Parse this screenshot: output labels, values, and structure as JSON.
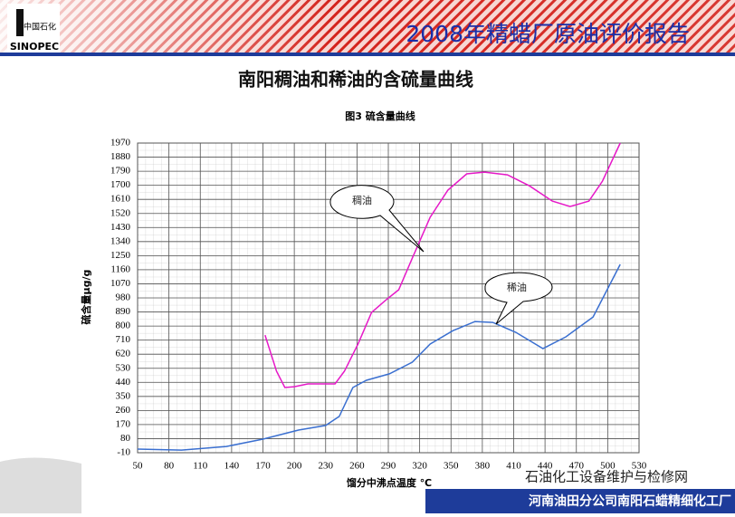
{
  "header": {
    "logo_cn": "中国石化",
    "logo_en": "SINOPEC",
    "report_title": "2008年精蜡厂原油评价报告"
  },
  "slide_title": "南阳稠油和稀油的含硫量曲线",
  "footer": {
    "company": "河南油田分公司南阳石蜡精细化工厂",
    "watermark": "石油化工设备维护与检修网"
  },
  "chart_data": {
    "type": "line",
    "title": "图3   硫含量曲线",
    "x_label": "馏分中沸点温度 ℃",
    "y_label": "硫含量μg/g",
    "xlim": [
      50,
      530
    ],
    "xticks": [
      50,
      80,
      110,
      140,
      170,
      200,
      230,
      260,
      290,
      320,
      350,
      380,
      410,
      440,
      470,
      500,
      530
    ],
    "ylim": [
      -10,
      1970
    ],
    "yticks": [
      -10,
      80,
      170,
      260,
      350,
      440,
      530,
      620,
      710,
      800,
      890,
      980,
      1070,
      1160,
      1250,
      1340,
      1430,
      1520,
      1610,
      1700,
      1790,
      1880,
      1970
    ],
    "grid": true,
    "series": [
      {
        "name": "稠油",
        "color": "#e619c8",
        "x": [
          172,
          183,
          191,
          200,
          213,
          239,
          248,
          261,
          274,
          287,
          300,
          313,
          330,
          347,
          365,
          382,
          404,
          425,
          447,
          464,
          482,
          495,
          512
        ],
        "values": [
          742,
          511,
          407,
          412,
          430,
          430,
          511,
          685,
          887,
          962,
          1032,
          1234,
          1495,
          1669,
          1773,
          1784,
          1767,
          1697,
          1599,
          1564,
          1599,
          1727,
          1970
        ]
      },
      {
        "name": "稀油",
        "color": "#3a6fd0",
        "x": [
          50,
          92,
          135,
          170,
          204,
          230,
          243,
          256,
          269,
          291,
          313,
          330,
          352,
          373,
          390,
          412,
          438,
          460,
          486,
          512
        ],
        "values": [
          13,
          7,
          30,
          77,
          135,
          164,
          222,
          407,
          453,
          494,
          569,
          685,
          771,
          829,
          823,
          760,
          656,
          731,
          858,
          1194
        ]
      }
    ]
  }
}
